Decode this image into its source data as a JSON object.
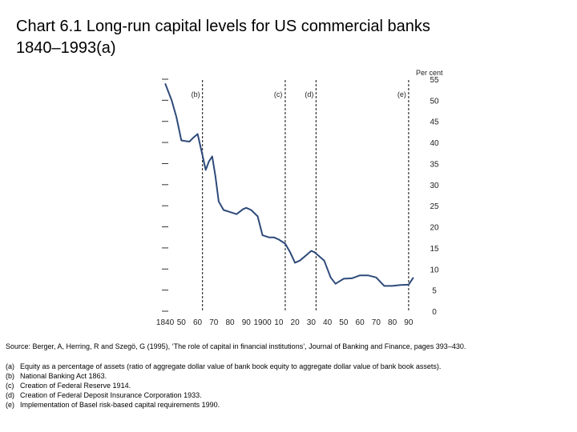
{
  "title": "Chart 6.1  Long-run capital levels for US commercial banks\n1840–1993(a)",
  "chart_data": {
    "type": "line",
    "title": "Chart 6.1  Long-run capital levels for US commercial banks 1840–1993(a)",
    "xlabel": "",
    "ylabel": "Per cent",
    "xlim": [
      1838,
      1995
    ],
    "ylim": [
      0,
      55
    ],
    "x_ticks": [
      1840,
      1850,
      1860,
      1870,
      1880,
      1890,
      1900,
      1910,
      1920,
      1930,
      1940,
      1950,
      1960,
      1970,
      1980,
      1990
    ],
    "x_tick_labels": [
      "1840",
      "50",
      "60",
      "70",
      "80",
      "90",
      "1900",
      "10",
      "20",
      "30",
      "40",
      "50",
      "60",
      "70",
      "80",
      "90"
    ],
    "y_ticks": [
      0,
      5,
      10,
      15,
      20,
      25,
      30,
      35,
      40,
      45,
      50,
      55
    ],
    "grid": false,
    "series": [
      {
        "x": [
          1840,
          1844,
          1847,
          1850,
          1853,
          1855,
          1857,
          1860,
          1863,
          1865,
          1867,
          1869,
          1871,
          1873,
          1876,
          1880,
          1884,
          1888,
          1890,
          1893,
          1897,
          1900,
          1904,
          1907,
          1910,
          1912,
          1914,
          1917,
          1920,
          1923,
          1927,
          1930,
          1932,
          1935,
          1938,
          1942,
          1945,
          1950,
          1955,
          1960,
          1965,
          1970,
          1975,
          1980,
          1985,
          1990,
          1993
        ],
        "y": [
          54,
          50,
          46,
          40.5,
          40.3,
          40.2,
          41,
          42,
          37,
          33.5,
          35.5,
          36.7,
          32,
          26,
          24,
          23.5,
          23,
          24.2,
          24.5,
          24,
          22.5,
          18,
          17.5,
          17.5,
          17,
          16.5,
          16,
          14,
          11.5,
          12,
          13.3,
          14.3,
          14,
          13,
          12,
          8,
          6.5,
          7.7,
          7.8,
          8.5,
          8.5,
          8,
          6,
          6,
          6.2,
          6.3,
          8
        ]
      }
    ],
    "markers": [
      {
        "label": "(b)",
        "x": 1863
      },
      {
        "label": "(c)",
        "x": 1914
      },
      {
        "label": "(d)",
        "x": 1933
      },
      {
        "label": "(e)",
        "x": 1990
      }
    ]
  },
  "source": "Source: Berger, A, Herring, R and Szegö, G (1995), ‘The role of capital in financial institutions’, Journal of Banking and Finance, pages 393–430.",
  "notes": [
    {
      "marker": "(a)",
      "text": "Equity as a percentage of assets (ratio of aggregate dollar value of bank book equity to aggregate dollar value of bank book assets)."
    },
    {
      "marker": "(b)",
      "text": "National Banking Act 1863."
    },
    {
      "marker": "(c)",
      "text": "Creation of Federal Reserve 1914."
    },
    {
      "marker": "(d)",
      "text": "Creation of Federal Deposit Insurance Corporation 1933."
    },
    {
      "marker": "(e)",
      "text": "Implementation of Basel risk-based capital requirements 1990."
    }
  ]
}
